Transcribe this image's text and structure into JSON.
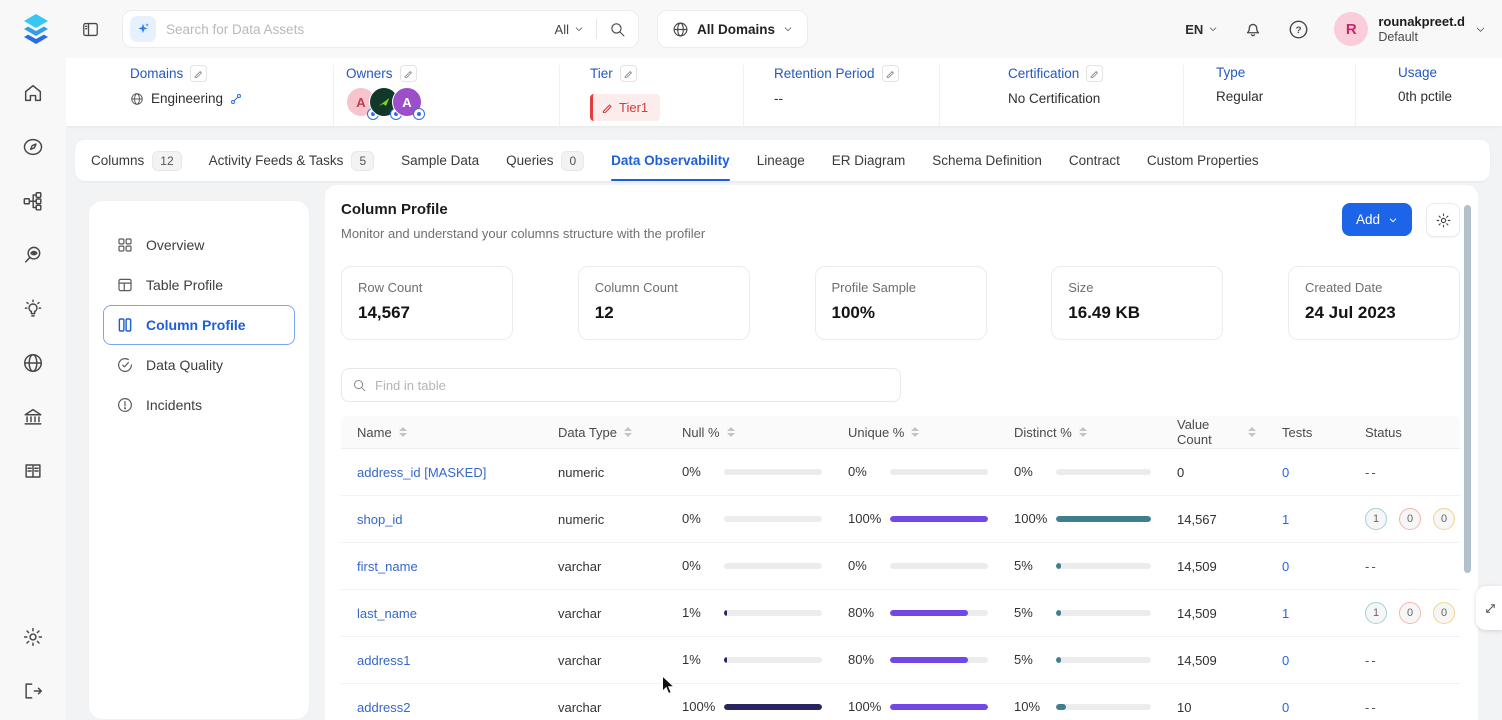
{
  "rail": {
    "items": [
      "home",
      "explore",
      "lineage",
      "observability",
      "insights",
      "domains",
      "governance",
      "glossary"
    ],
    "bottom": [
      "settings",
      "logout"
    ]
  },
  "topbar": {
    "search_placeholder": "Search for Data Assets",
    "search_scope": "All",
    "domains_filter": "All Domains",
    "language": "EN",
    "user": {
      "name": "rounakpreet.d",
      "team": "Default",
      "initial": "R"
    }
  },
  "meta": {
    "domains": {
      "label": "Domains",
      "value": "Engineering"
    },
    "owners": {
      "label": "Owners",
      "avatars": [
        {
          "initial": "A",
          "bg": "#f6c4cd",
          "fg": "#c13a52"
        },
        {
          "initial": "",
          "bg": "#12382a",
          "fg": "#7ed321"
        },
        {
          "initial": "A",
          "bg": "#9b4fc9",
          "fg": "#ffffff"
        }
      ]
    },
    "tier": {
      "label": "Tier",
      "value": "Tier1"
    },
    "retention": {
      "label": "Retention Period",
      "value": "--"
    },
    "certification": {
      "label": "Certification",
      "value": "No Certification"
    },
    "type": {
      "label": "Type",
      "value": "Regular"
    },
    "usage": {
      "label": "Usage",
      "value": "0th pctile"
    }
  },
  "tabs": [
    {
      "label": "Columns",
      "badge": "12"
    },
    {
      "label": "Activity Feeds & Tasks",
      "badge": "5"
    },
    {
      "label": "Sample Data"
    },
    {
      "label": "Queries",
      "badge": "0"
    },
    {
      "label": "Data Observability",
      "active": true
    },
    {
      "label": "Lineage"
    },
    {
      "label": "ER Diagram"
    },
    {
      "label": "Schema Definition"
    },
    {
      "label": "Contract"
    },
    {
      "label": "Custom Properties"
    }
  ],
  "profiler_nav": [
    {
      "label": "Overview"
    },
    {
      "label": "Table Profile"
    },
    {
      "label": "Column Profile",
      "active": true
    },
    {
      "label": "Data Quality"
    },
    {
      "label": "Incidents"
    }
  ],
  "panel": {
    "title": "Column Profile",
    "subtitle": "Monitor and understand your columns structure with the profiler",
    "add_button": "Add",
    "stats": [
      {
        "label": "Row Count",
        "value": "14,567"
      },
      {
        "label": "Column Count",
        "value": "12"
      },
      {
        "label": "Profile Sample",
        "value": "100%"
      },
      {
        "label": "Size",
        "value": "16.49 KB"
      },
      {
        "label": "Created Date",
        "value": "24 Jul 2023"
      }
    ],
    "find_placeholder": "Find in table"
  },
  "table": {
    "columns": [
      {
        "label": "Name",
        "sortable": true
      },
      {
        "label": "Data Type",
        "sortable": true
      },
      {
        "label": "Null %",
        "sortable": true
      },
      {
        "label": "Unique %",
        "sortable": true
      },
      {
        "label": "Distinct %",
        "sortable": true
      },
      {
        "label": "Value Count",
        "sortable": true
      },
      {
        "label": "Tests",
        "sortable": false
      },
      {
        "label": "Status",
        "sortable": false
      }
    ],
    "rows": [
      {
        "name": "address_id [MASKED]",
        "data_type": "numeric",
        "null_pct": 0,
        "unique_pct": 0,
        "distinct_pct": 0,
        "value_count": "0",
        "tests": "0",
        "status": null
      },
      {
        "name": "shop_id",
        "data_type": "numeric",
        "null_pct": 0,
        "unique_pct": 100,
        "distinct_pct": 100,
        "value_count": "14,567",
        "tests": "1",
        "status": {
          "success": "1",
          "failed": "0",
          "aborted": "0"
        }
      },
      {
        "name": "first_name",
        "data_type": "varchar",
        "null_pct": 0,
        "unique_pct": 0,
        "distinct_pct": 5,
        "value_count": "14,509",
        "tests": "0",
        "status": null
      },
      {
        "name": "last_name",
        "data_type": "varchar",
        "null_pct": 1,
        "unique_pct": 80,
        "distinct_pct": 5,
        "value_count": "14,509",
        "tests": "1",
        "status": {
          "success": "1",
          "failed": "0",
          "aborted": "0"
        }
      },
      {
        "name": "address1",
        "data_type": "varchar",
        "null_pct": 1,
        "unique_pct": 80,
        "distinct_pct": 5,
        "value_count": "14,509",
        "tests": "0",
        "status": null
      },
      {
        "name": "address2",
        "data_type": "varchar",
        "null_pct": 100,
        "unique_pct": 100,
        "distinct_pct": 10,
        "value_count": "10",
        "tests": "0",
        "status": null
      }
    ]
  },
  "colors": {
    "accent": "#1c64e8",
    "null_bar": "#26255f",
    "unique_bar": "#7147e8",
    "distinct_bar": "#3f7e8e",
    "bar_track": "#ececec",
    "status_success": "#9fd3d8",
    "status_failed": "#f3b7a6",
    "status_aborted": "#f3d68a",
    "tier_red": "#e23d3d",
    "scrollbar": "#b2c0cb"
  }
}
